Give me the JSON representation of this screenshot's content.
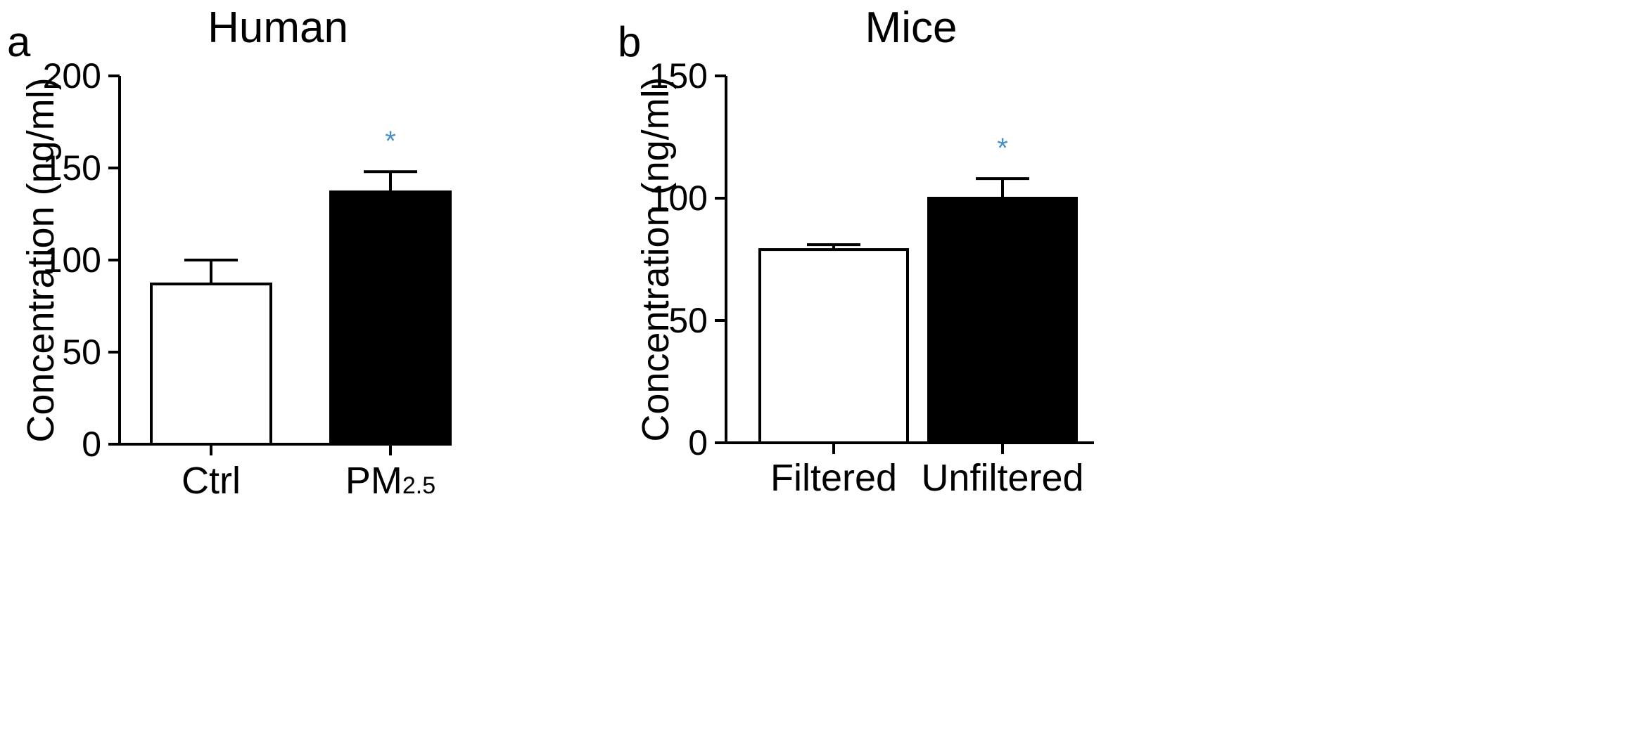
{
  "chart_data": [
    {
      "type": "bar",
      "panel_label": "a",
      "title": "Human",
      "ylabel": "Concentration (ng/ml)",
      "ylim": [
        0,
        200
      ],
      "yticks": [
        "0",
        "50",
        "100",
        "150",
        "200"
      ],
      "categories": [
        "Ctrl",
        "PM2.5"
      ],
      "category_parts": [
        {
          "main": "Ctrl",
          "sub": ""
        },
        {
          "main": "PM",
          "sub": "2.5"
        }
      ],
      "values": [
        87,
        137
      ],
      "errors": [
        13,
        11
      ],
      "bar_fills": [
        "#ffffff",
        "#000000"
      ],
      "significance": [
        "",
        "*"
      ],
      "significance_color": "#4a90c8"
    },
    {
      "type": "bar",
      "panel_label": "b",
      "title": "Mice",
      "ylabel": "Concentration (ng/ml)",
      "ylim": [
        0,
        150
      ],
      "yticks": [
        "0",
        "50",
        "100",
        "150"
      ],
      "categories": [
        "Filtered",
        "Unfiltered"
      ],
      "category_parts": [
        {
          "main": "Filtered",
          "sub": ""
        },
        {
          "main": "Unfiltered",
          "sub": ""
        }
      ],
      "values": [
        79,
        100
      ],
      "errors": [
        2,
        8
      ],
      "bar_fills": [
        "#ffffff",
        "#000000"
      ],
      "significance": [
        "",
        "*"
      ],
      "significance_color": "#4a90c8"
    }
  ]
}
